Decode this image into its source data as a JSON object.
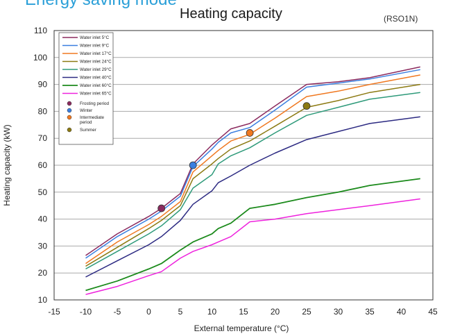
{
  "page": {
    "heading": "Energy saving mode"
  },
  "chart_data": {
    "type": "line",
    "title": "Heating capacity",
    "subtitle": "(RSO1N)",
    "xlabel": "External temperature (°C)",
    "ylabel": "Heating capacity (kW)",
    "xlim": [
      -15,
      45
    ],
    "ylim": [
      10,
      110
    ],
    "xticks": [
      "-15",
      "-10",
      "-5",
      "0",
      "5",
      "10",
      "15",
      "20",
      "25",
      "30",
      "35",
      "40",
      "45"
    ],
    "yticks": [
      "10",
      "20",
      "30",
      "40",
      "50",
      "60",
      "70",
      "80",
      "90",
      "100",
      "110"
    ],
    "grid": true,
    "legend_position": "top-left",
    "series": [
      {
        "name": "Water inlet 5°C",
        "color": "#8b2a5e",
        "points": [
          [
            -10,
            26.5
          ],
          [
            -5,
            34.5
          ],
          [
            0,
            41
          ],
          [
            2,
            44
          ],
          [
            5,
            49.5
          ],
          [
            7,
            60.5
          ],
          [
            10,
            67.5
          ],
          [
            11,
            69.5
          ],
          [
            13,
            73.5
          ],
          [
            16,
            75.5
          ],
          [
            20,
            82
          ],
          [
            25,
            90
          ],
          [
            30,
            91
          ],
          [
            35,
            92.5
          ],
          [
            43,
            96.5
          ]
        ]
      },
      {
        "name": "Water inlet 9°C",
        "color": "#3a7ee0",
        "points": [
          [
            -10,
            25.5
          ],
          [
            -5,
            33.5
          ],
          [
            0,
            40
          ],
          [
            2,
            43
          ],
          [
            5,
            48.5
          ],
          [
            7,
            59.5
          ],
          [
            10,
            66
          ],
          [
            11,
            68.5
          ],
          [
            13,
            72
          ],
          [
            16,
            74
          ],
          [
            20,
            80.5
          ],
          [
            25,
            89
          ],
          [
            30,
            90.5
          ],
          [
            35,
            92
          ],
          [
            43,
            95.5
          ]
        ]
      },
      {
        "name": "Water inlet 17°C",
        "color": "#f07820",
        "points": [
          [
            -10,
            23.5
          ],
          [
            -5,
            31.5
          ],
          [
            0,
            38
          ],
          [
            2,
            41
          ],
          [
            5,
            46.5
          ],
          [
            7,
            57.5
          ],
          [
            10,
            63.5
          ],
          [
            11,
            65.5
          ],
          [
            13,
            69
          ],
          [
            16,
            71.5
          ],
          [
            20,
            77.5
          ],
          [
            25,
            85.5
          ],
          [
            30,
            87.5
          ],
          [
            35,
            90
          ],
          [
            43,
            93.5
          ]
        ]
      },
      {
        "name": "Water inlet 24°C",
        "color": "#8c7a12",
        "points": [
          [
            -10,
            22.5
          ],
          [
            -5,
            29.5
          ],
          [
            0,
            36.5
          ],
          [
            2,
            39.5
          ],
          [
            5,
            45
          ],
          [
            7,
            55
          ],
          [
            10,
            60.5
          ],
          [
            11,
            62.5
          ],
          [
            13,
            66
          ],
          [
            16,
            69
          ],
          [
            20,
            74.5
          ],
          [
            25,
            81.5
          ],
          [
            30,
            84
          ],
          [
            35,
            87
          ],
          [
            43,
            90
          ]
        ]
      },
      {
        "name": "Water inlet 29°C",
        "color": "#2e9a7a",
        "points": [
          [
            -10,
            21.5
          ],
          [
            -5,
            28
          ],
          [
            0,
            34.5
          ],
          [
            2,
            37.5
          ],
          [
            5,
            43.5
          ],
          [
            7,
            51.5
          ],
          [
            10,
            56.5
          ],
          [
            11,
            60.5
          ],
          [
            13,
            63.5
          ],
          [
            16,
            66.5
          ],
          [
            20,
            72
          ],
          [
            25,
            78.5
          ],
          [
            30,
            81.5
          ],
          [
            35,
            84.5
          ],
          [
            43,
            87
          ]
        ]
      },
      {
        "name": "Water inlet 40°C",
        "color": "#2c2a82",
        "points": [
          [
            -10,
            18.5
          ],
          [
            -5,
            24.5
          ],
          [
            0,
            30.5
          ],
          [
            2,
            33.5
          ],
          [
            5,
            39.5
          ],
          [
            7,
            45.5
          ],
          [
            10,
            50.5
          ],
          [
            11,
            53.5
          ],
          [
            13,
            56
          ],
          [
            16,
            60
          ],
          [
            20,
            64.5
          ],
          [
            25,
            69.5
          ],
          [
            30,
            72.5
          ],
          [
            35,
            75.5
          ],
          [
            43,
            78
          ]
        ]
      },
      {
        "name": "Water inlet 60°C",
        "color": "#1b8a1b",
        "points": [
          [
            -10,
            13.5
          ],
          [
            -5,
            17
          ],
          [
            0,
            21.5
          ],
          [
            2,
            23.5
          ],
          [
            5,
            28.5
          ],
          [
            7,
            31.5
          ],
          [
            10,
            34.5
          ],
          [
            11,
            36.5
          ],
          [
            13,
            38.5
          ],
          [
            16,
            44
          ],
          [
            20,
            45.5
          ],
          [
            25,
            48
          ],
          [
            30,
            50
          ],
          [
            35,
            52.5
          ],
          [
            43,
            55
          ]
        ]
      },
      {
        "name": "Water inlet 65°C",
        "color": "#ee22dd",
        "points": [
          [
            -10,
            12
          ],
          [
            -5,
            15
          ],
          [
            0,
            19
          ],
          [
            2,
            20.5
          ],
          [
            5,
            25.5
          ],
          [
            7,
            28
          ],
          [
            10,
            30.5
          ],
          [
            11,
            31.5
          ],
          [
            13,
            33.5
          ],
          [
            16,
            39
          ],
          [
            20,
            40
          ],
          [
            25,
            42
          ],
          [
            30,
            43.5
          ],
          [
            35,
            45
          ],
          [
            43,
            47.5
          ]
        ]
      }
    ],
    "markers": [
      {
        "name": "Frosting period",
        "color": "#8b2a5e",
        "x": 2,
        "y": 44
      },
      {
        "name": "Winter",
        "color": "#3a7ee0",
        "x": 7,
        "y": 60
      },
      {
        "name": "Intermediate period",
        "lines": [
          "Intermediate",
          "period"
        ],
        "color": "#f07820",
        "x": 16,
        "y": 72
      },
      {
        "name": "Summer",
        "color": "#8c7a12",
        "x": 25,
        "y": 82
      }
    ]
  }
}
